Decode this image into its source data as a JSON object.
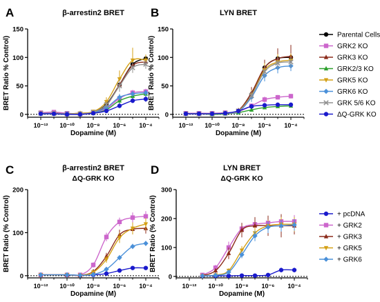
{
  "chart_data": [
    {
      "panel_letter": "A",
      "type": "line",
      "title": "β-arrestin2 BRET",
      "subtitle": "",
      "xlabel": "Dopamine (M)",
      "ylabel": "BRET Ratio %  Control)",
      "x_scale": "log",
      "x": [
        1e-12,
        1e-11,
        1e-10,
        1e-09,
        1e-08,
        1e-07,
        1e-06,
        1e-05,
        0.0001
      ],
      "x_tick_labels": [
        "10⁻¹²",
        "10⁻¹⁰",
        "10⁻⁸",
        "10⁻⁶",
        "10⁻⁴"
      ],
      "x_tick_values": [
        1e-12,
        1e-10,
        1e-08,
        1e-06,
        0.0001
      ],
      "xlim": [
        1e-13,
        0.001
      ],
      "ylim": [
        -5,
        150
      ],
      "y_ticks": [
        0,
        50,
        100,
        150
      ],
      "dotted_zero_line": true,
      "series": [
        {
          "name": "Parental Cells",
          "color": "#000000",
          "marker": "circle",
          "values": [
            2,
            2,
            1,
            1,
            4,
            18,
            52,
            88,
            98
          ],
          "errors": [
            2,
            2,
            2,
            2,
            3,
            5,
            8,
            8,
            6
          ]
        },
        {
          "name": "GRK2 KO",
          "color": "#cc66cc",
          "marker": "square",
          "values": [
            3,
            4,
            2,
            1,
            3,
            10,
            28,
            38,
            40
          ],
          "errors": [
            2,
            3,
            2,
            2,
            2,
            4,
            6,
            5,
            5
          ]
        },
        {
          "name": "GRK3 KO",
          "color": "#8b2a1a",
          "marker": "triangle-up",
          "values": [
            2,
            1,
            1,
            2,
            4,
            16,
            52,
            86,
            92
          ],
          "errors": [
            2,
            2,
            2,
            2,
            3,
            6,
            12,
            9,
            8
          ]
        },
        {
          "name": "GRK2/3 KO",
          "color": "#2ca02c",
          "marker": "triangle-up",
          "values": [
            1,
            1,
            0,
            1,
            2,
            8,
            24,
            32,
            36
          ],
          "errors": [
            2,
            2,
            2,
            2,
            2,
            3,
            5,
            5,
            5
          ]
        },
        {
          "name": "GRK5 KO",
          "color": "#d4a017",
          "marker": "triangle-down",
          "values": [
            2,
            2,
            1,
            2,
            5,
            22,
            62,
            95,
            95
          ],
          "errors": [
            2,
            2,
            2,
            2,
            3,
            8,
            15,
            22,
            10
          ]
        },
        {
          "name": "GRK6 KO",
          "color": "#4a90d9",
          "marker": "diamond",
          "values": [
            1,
            1,
            1,
            1,
            3,
            12,
            30,
            36,
            38
          ],
          "errors": [
            2,
            2,
            2,
            2,
            2,
            4,
            6,
            5,
            5
          ]
        },
        {
          "name": "GRK 5/6 KO",
          "color": "#909090",
          "marker": "x",
          "values": [
            2,
            2,
            1,
            1,
            4,
            17,
            50,
            82,
            88
          ],
          "errors": [
            2,
            2,
            2,
            2,
            3,
            6,
            10,
            9,
            8
          ]
        },
        {
          "name": "ΔQ-GRK KO",
          "color": "#1a1acc",
          "marker": "circle",
          "values": [
            1,
            1,
            0,
            0,
            2,
            6,
            15,
            24,
            27
          ],
          "errors": [
            2,
            2,
            2,
            2,
            2,
            3,
            4,
            4,
            5
          ]
        }
      ]
    },
    {
      "panel_letter": "B",
      "type": "line",
      "title": "LYN BRET",
      "subtitle": "",
      "xlabel": "Dopamine (M)",
      "ylabel": "BRET Ratio %  Control)",
      "x_scale": "log",
      "x": [
        1e-12,
        1e-11,
        1e-10,
        1e-09,
        1e-08,
        1e-07,
        1e-06,
        1e-05,
        0.0001
      ],
      "x_tick_labels": [
        "10⁻¹²",
        "10⁻¹⁰",
        "10⁻⁸",
        "10⁻⁶",
        "10⁻⁴"
      ],
      "x_tick_values": [
        1e-12,
        1e-10,
        1e-08,
        1e-06,
        0.0001
      ],
      "xlim": [
        1e-13,
        0.001
      ],
      "ylim": [
        -5,
        150
      ],
      "y_ticks": [
        0,
        50,
        100,
        150
      ],
      "dotted_zero_line": true,
      "series": [
        {
          "name": "Parental Cells",
          "color": "#000000",
          "marker": "circle",
          "values": [
            1,
            1,
            1,
            2,
            6,
            35,
            82,
            98,
            100
          ],
          "errors": [
            2,
            2,
            2,
            2,
            4,
            8,
            10,
            9,
            8
          ]
        },
        {
          "name": "GRK2 KO",
          "color": "#cc66cc",
          "marker": "square",
          "values": [
            2,
            2,
            2,
            3,
            5,
            15,
            26,
            30,
            32
          ],
          "errors": [
            2,
            2,
            2,
            2,
            3,
            4,
            5,
            4,
            4
          ]
        },
        {
          "name": "GRK3 KO",
          "color": "#8b2a1a",
          "marker": "triangle-up",
          "values": [
            1,
            1,
            1,
            2,
            7,
            38,
            82,
            98,
            102
          ],
          "errors": [
            2,
            2,
            2,
            2,
            4,
            10,
            14,
            18,
            20
          ]
        },
        {
          "name": "GRK2/3 KO",
          "color": "#2ca02c",
          "marker": "triangle-up",
          "values": [
            1,
            1,
            0,
            1,
            3,
            8,
            12,
            14,
            15
          ],
          "errors": [
            2,
            2,
            2,
            2,
            2,
            3,
            3,
            3,
            3
          ]
        },
        {
          "name": "GRK5 KO",
          "color": "#d4a017",
          "marker": "triangle-down",
          "values": [
            1,
            1,
            1,
            2,
            6,
            34,
            78,
            92,
            95
          ],
          "errors": [
            2,
            2,
            2,
            2,
            4,
            9,
            12,
            14,
            12
          ]
        },
        {
          "name": "GRK6 KO",
          "color": "#4a90d9",
          "marker": "diamond",
          "values": [
            1,
            1,
            1,
            2,
            5,
            30,
            68,
            82,
            85
          ],
          "errors": [
            2,
            2,
            2,
            2,
            4,
            8,
            10,
            10,
            9
          ]
        },
        {
          "name": "GRK 5/6 KO",
          "color": "#909090",
          "marker": "x",
          "values": [
            1,
            1,
            1,
            2,
            6,
            33,
            75,
            90,
            92
          ],
          "errors": [
            2,
            2,
            2,
            2,
            4,
            8,
            10,
            10,
            9
          ]
        },
        {
          "name": "ΔQ-GRK KO",
          "color": "#1a1acc",
          "marker": "circle",
          "values": [
            1,
            1,
            1,
            2,
            6,
            14,
            16,
            17,
            17
          ],
          "errors": [
            2,
            2,
            2,
            2,
            3,
            4,
            4,
            3,
            3
          ]
        }
      ]
    },
    {
      "panel_letter": "C",
      "type": "line",
      "title": "β-arrestin2 BRET",
      "subtitle": "ΔQ-GRK KO",
      "xlabel": "Dopamine (M)",
      "ylabel": "BRET Ratio (% Control)",
      "x_scale": "log",
      "x": [
        1e-12,
        1e-10,
        1e-09,
        1e-08,
        1e-07,
        1e-06,
        1e-05,
        0.0001
      ],
      "x_tick_labels": [
        "10⁻¹²",
        "10⁻¹⁰",
        "10⁻⁸",
        "10⁻⁶",
        "10⁻⁴"
      ],
      "x_tick_values": [
        1e-12,
        1e-10,
        1e-08,
        1e-06,
        0.0001
      ],
      "xlim": [
        1e-13,
        0.001
      ],
      "ylim": [
        -5,
        200
      ],
      "y_ticks": [
        0,
        100,
        200
      ],
      "dotted_zero_line": true,
      "series": [
        {
          "name": "+ pcDNA",
          "color": "#1a1acc",
          "marker": "circle",
          "values": [
            2,
            2,
            1,
            2,
            5,
            12,
            18,
            18
          ],
          "errors": [
            2,
            2,
            2,
            2,
            3,
            3,
            3,
            3
          ]
        },
        {
          "name": "+ GRK2",
          "color": "#cc66cc",
          "marker": "square",
          "values": [
            2,
            2,
            2,
            25,
            90,
            125,
            135,
            138
          ],
          "errors": [
            2,
            2,
            2,
            6,
            10,
            10,
            12,
            12
          ]
        },
        {
          "name": "+ GRK3",
          "color": "#8b2a1a",
          "marker": "triangle-up",
          "values": [
            2,
            2,
            1,
            10,
            45,
            95,
            108,
            110
          ],
          "errors": [
            2,
            2,
            2,
            4,
            8,
            12,
            12,
            12
          ]
        },
        {
          "name": "+ GRK5",
          "color": "#d4a017",
          "marker": "triangle-down",
          "values": [
            2,
            2,
            1,
            8,
            38,
            88,
            110,
            120
          ],
          "errors": [
            2,
            2,
            2,
            4,
            8,
            12,
            14,
            14
          ]
        },
        {
          "name": "+ GRK6",
          "color": "#4a90d9",
          "marker": "diamond",
          "values": [
            2,
            2,
            1,
            3,
            15,
            42,
            68,
            75
          ],
          "errors": [
            2,
            2,
            2,
            2,
            4,
            6,
            6,
            6
          ]
        }
      ]
    },
    {
      "panel_letter": "D",
      "type": "line",
      "title": "LYN BRET",
      "subtitle": "ΔQ-GRK KO",
      "xlabel": "Dopamine (M)",
      "ylabel": "BRET Ratio  (% Control)",
      "x_scale": "log",
      "x": [
        1e-11,
        1e-10,
        1e-09,
        1e-08,
        1e-07,
        1e-06,
        1e-05,
        0.0001
      ],
      "x_tick_labels": [
        "10⁻¹²",
        "10⁻¹⁰",
        "10⁻⁸",
        "10⁻⁶",
        "10⁻⁴"
      ],
      "x_tick_values": [
        1e-12,
        1e-10,
        1e-08,
        1e-06,
        0.0001
      ],
      "xlim": [
        1e-13,
        0.001
      ],
      "ylim": [
        -5,
        300
      ],
      "y_ticks": [
        0,
        100,
        200,
        300
      ],
      "dotted_zero_line": true,
      "series": [
        {
          "name": "+ pcDNA",
          "color": "#1a1acc",
          "marker": "circle",
          "values": [
            2,
            2,
            2,
            3,
            3,
            5,
            22,
            22
          ],
          "errors": [
            2,
            2,
            2,
            2,
            2,
            3,
            8,
            8
          ]
        },
        {
          "name": "+ GRK2",
          "color": "#cc66cc",
          "marker": "square",
          "values": [
            5,
            30,
            100,
            165,
            180,
            185,
            190,
            190
          ],
          "errors": [
            4,
            10,
            20,
            20,
            20,
            20,
            22,
            22
          ]
        },
        {
          "name": "+ GRK3",
          "color": "#8b2a1a",
          "marker": "triangle-up",
          "values": [
            3,
            20,
            80,
            160,
            175,
            175,
            175,
            175
          ],
          "errors": [
            3,
            8,
            20,
            25,
            30,
            35,
            40,
            30
          ]
        },
        {
          "name": "+ GRK5",
          "color": "#d4a017",
          "marker": "triangle-down",
          "values": [
            2,
            5,
            20,
            90,
            150,
            175,
            180,
            180
          ],
          "errors": [
            2,
            3,
            8,
            15,
            20,
            20,
            25,
            25
          ]
        },
        {
          "name": "+ GRK6",
          "color": "#4a90d9",
          "marker": "diamond",
          "values": [
            2,
            4,
            15,
            75,
            140,
            170,
            175,
            178
          ],
          "errors": [
            2,
            3,
            6,
            12,
            18,
            20,
            20,
            20
          ]
        }
      ]
    }
  ],
  "legends": [
    {
      "for_panels": [
        "A",
        "B"
      ],
      "placement": "right of panel B"
    },
    {
      "for_panels": [
        "C",
        "D"
      ],
      "placement": "right of panel D"
    }
  ]
}
